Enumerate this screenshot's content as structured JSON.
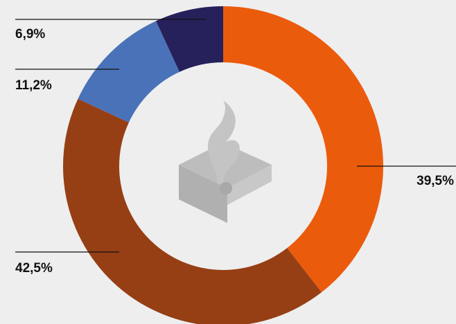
{
  "chart_data": {
    "type": "donut",
    "categories": [
      null,
      null,
      null,
      null
    ],
    "values": [
      39.5,
      42.5,
      11.2,
      6.9
    ],
    "value_labels": [
      "39,5%",
      "42,5%",
      "11,2%",
      "6,9%"
    ],
    "colors": [
      "#eb5b0c",
      "#963f15",
      "#4a72b8",
      "#26215a"
    ]
  }
}
